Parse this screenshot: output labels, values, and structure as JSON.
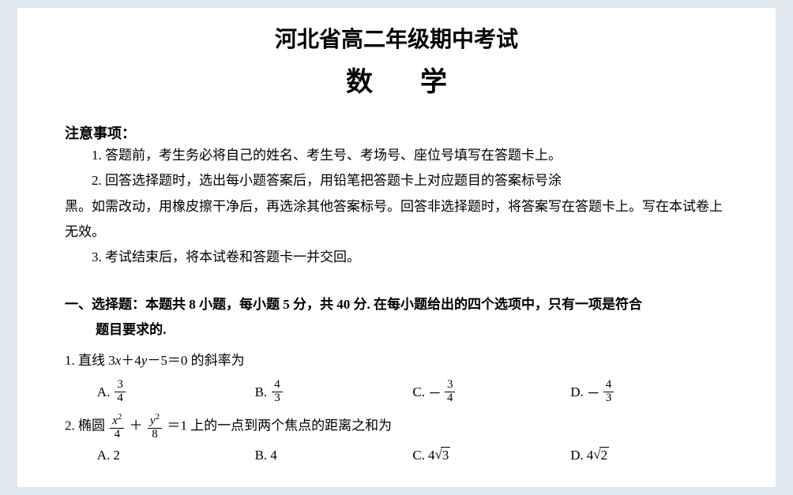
{
  "colors": {
    "page_bg": "#ffffff",
    "outer_bg": "#dfe8ef",
    "text": "#000000"
  },
  "title": {
    "line1": "河北省高二年级期中考试",
    "line2": "数学"
  },
  "notice": {
    "heading": "注意事项：",
    "items": [
      "1. 答题前，考生务必将自己的姓名、考生号、考场号、座位号填写在答题卡上。",
      "2. 回答选择题时，选出每小题答案后，用铅笔把答题卡上对应题目的答案标号涂",
      "3. 考试结束后，将本试卷和答题卡一并交回。"
    ],
    "item2_cont": "黑。如需改动，用橡皮擦干净后，再选涂其他答案标号。回答非选择题时，将答案写在答题卡上。写在本试卷上无效。"
  },
  "section1": {
    "heading_a": "一、选择题：本题共 8 小题，每小题 5 分，共 40 分. 在每小题给出的四个选项中，只有一项是符合",
    "heading_b": "题目要求的."
  },
  "q1": {
    "stem_prefix": "1. 直线 3",
    "stem_mid1": "＋4",
    "stem_mid2": "－5＝0 的斜率为",
    "var_x": "x",
    "var_y": "y",
    "A": {
      "label": "A.",
      "num": "3",
      "den": "4"
    },
    "B": {
      "label": "B.",
      "num": "4",
      "den": "3"
    },
    "C": {
      "label": "C.",
      "neg": "－",
      "num": "3",
      "den": "4"
    },
    "D": {
      "label": "D.",
      "neg": "－",
      "num": "4",
      "den": "3"
    }
  },
  "q2": {
    "stem_prefix": "2. 椭圆",
    "frac1": {
      "num_base": "x",
      "num_exp": "2",
      "den": "4"
    },
    "plus": "＋",
    "frac2": {
      "num_base": "y",
      "num_exp": "2",
      "den": "8"
    },
    "stem_suffix": "＝1 上的一点到两个焦点的距离之和为",
    "A": {
      "label": "A.",
      "val": "2"
    },
    "B": {
      "label": "B.",
      "val": "4"
    },
    "C": {
      "label": "C.",
      "coef": "4",
      "rad": "3"
    },
    "D": {
      "label": "D.",
      "coef": "4",
      "rad": "2"
    }
  }
}
